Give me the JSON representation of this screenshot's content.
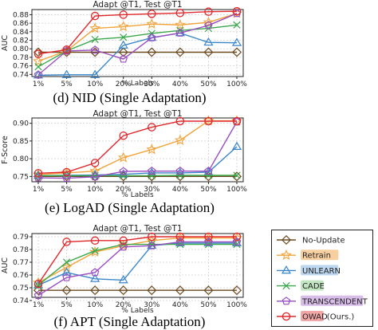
{
  "legend_entries": [
    {
      "name": "No-Update",
      "color": "#6b4a1f",
      "marker": "diamond",
      "highlight": ""
    },
    {
      "name": "Retrain",
      "color": "#f2a33a",
      "marker": "star",
      "highlight": "#f7cfa0"
    },
    {
      "name": "UNLEARN",
      "color": "#3a86c8",
      "marker": "triangle",
      "highlight": "#bcd7ef"
    },
    {
      "name": "CADE",
      "color": "#3aa84a",
      "marker": "x",
      "highlight": "#c2e6c2"
    },
    {
      "name": "TRANSCENDENT",
      "color": "#9a4dc0",
      "marker": "pentagon",
      "highlight": "#d8bde8"
    },
    {
      "name": "OWAD",
      "color": "#e0282c",
      "marker": "circle",
      "highlight": "#f2a7a7",
      "suffix": "(Ours.)"
    }
  ],
  "chart_data": [
    {
      "type": "line",
      "title": "Adapt @T1, Test @T1",
      "caption": "(d) NID (Single Adaptation)",
      "xlabel": "% Labels",
      "ylabel": "AUC",
      "categories": [
        "1%",
        "5%",
        "10%",
        "20%",
        "30%",
        "40%",
        "50%",
        "100%"
      ],
      "ylim": [
        0.735,
        0.892
      ],
      "yticks": [
        "0.74",
        "0.76",
        "0.78",
        "0.80",
        "0.82",
        "0.84",
        "0.86",
        "0.88"
      ],
      "ytick_values": [
        0.74,
        0.76,
        0.78,
        0.8,
        0.82,
        0.84,
        0.86,
        0.88
      ],
      "series": [
        {
          "name": "No-Update",
          "values": [
            0.792,
            0.792,
            0.792,
            0.792,
            0.792,
            0.792,
            0.792,
            0.792
          ]
        },
        {
          "name": "Retrain",
          "values": [
            0.771,
            0.795,
            0.848,
            0.852,
            0.858,
            0.856,
            0.862,
            0.883
          ]
        },
        {
          "name": "UNLEARN",
          "values": [
            0.738,
            0.739,
            0.739,
            0.808,
            0.826,
            0.837,
            0.815,
            0.814
          ]
        },
        {
          "name": "CADE",
          "values": [
            0.758,
            0.795,
            0.822,
            0.827,
            0.836,
            0.843,
            0.848,
            0.856
          ]
        },
        {
          "name": "TRANSCENDENT",
          "values": [
            0.739,
            0.795,
            0.797,
            0.776,
            0.826,
            0.837,
            0.855,
            0.883
          ]
        },
        {
          "name": "OWAD",
          "values": [
            0.788,
            0.798,
            0.877,
            0.88,
            0.882,
            0.884,
            0.887,
            0.888
          ]
        }
      ]
    },
    {
      "type": "line",
      "title": "Adapt @T1, Test @T1",
      "caption": "(e) LogAD (Single Adaptation)",
      "xlabel": "% Labels",
      "ylabel": "F-Score",
      "categories": [
        "1%",
        "5%",
        "10%",
        "20%",
        "30%",
        "40%",
        "50%",
        "100%"
      ],
      "ylim": [
        0.735,
        0.915
      ],
      "yticks": [
        "0.75",
        "0.80",
        "0.85",
        "0.90"
      ],
      "ytick_values": [
        0.75,
        0.8,
        0.85,
        0.9
      ],
      "series": [
        {
          "name": "No-Update",
          "values": [
            0.75,
            0.75,
            0.75,
            0.75,
            0.75,
            0.75,
            0.75,
            0.75
          ]
        },
        {
          "name": "Retrain",
          "values": [
            0.755,
            0.76,
            0.765,
            0.803,
            0.826,
            0.852,
            0.907,
            0.907
          ]
        },
        {
          "name": "UNLEARN",
          "values": [
            0.752,
            0.753,
            0.754,
            0.756,
            0.76,
            0.76,
            0.762,
            0.834
          ]
        },
        {
          "name": "CADE",
          "values": [
            0.752,
            0.752,
            0.752,
            0.752,
            0.752,
            0.753,
            0.753,
            0.753
          ]
        },
        {
          "name": "TRANSCENDENT",
          "values": [
            0.746,
            0.745,
            0.749,
            0.764,
            0.765,
            0.765,
            0.765,
            0.904
          ]
        },
        {
          "name": "OWAD",
          "values": [
            0.759,
            0.762,
            0.788,
            0.865,
            0.889,
            0.906,
            0.906,
            0.906
          ]
        }
      ]
    },
    {
      "type": "line",
      "title": "Adapt @T1, Test @T1",
      "caption": "(f) APT (Single Adaptation)",
      "xlabel": "% Labels",
      "ylabel": "AUC",
      "categories": [
        "1%",
        "5%",
        "10%",
        "20%",
        "30%",
        "40%",
        "50%",
        "100%"
      ],
      "ylim": [
        0.7425,
        0.7925
      ],
      "yticks": [
        "0.74",
        "0.75",
        "0.76",
        "0.77",
        "0.78",
        "0.79"
      ],
      "ytick_values": [
        0.74,
        0.75,
        0.76,
        0.77,
        0.78,
        0.79
      ],
      "series": [
        {
          "name": "No-Update",
          "values": [
            0.748,
            0.748,
            0.748,
            0.748,
            0.748,
            0.748,
            0.748,
            0.748
          ]
        },
        {
          "name": "Retrain",
          "values": [
            0.754,
            0.766,
            0.778,
            0.783,
            0.787,
            0.789,
            0.789,
            0.789
          ]
        },
        {
          "name": "UNLEARN",
          "values": [
            0.752,
            0.762,
            0.757,
            0.756,
            0.783,
            0.785,
            0.785,
            0.785
          ]
        },
        {
          "name": "CADE",
          "values": [
            0.752,
            0.77,
            0.779,
            0.784,
            0.784,
            0.784,
            0.784,
            0.784
          ]
        },
        {
          "name": "TRANSCENDENT",
          "values": [
            0.744,
            0.758,
            0.762,
            0.782,
            0.783,
            0.786,
            0.786,
            0.786
          ]
        },
        {
          "name": "OWAD",
          "values": [
            0.753,
            0.786,
            0.787,
            0.787,
            0.79,
            0.79,
            0.79,
            0.79
          ]
        }
      ]
    }
  ]
}
